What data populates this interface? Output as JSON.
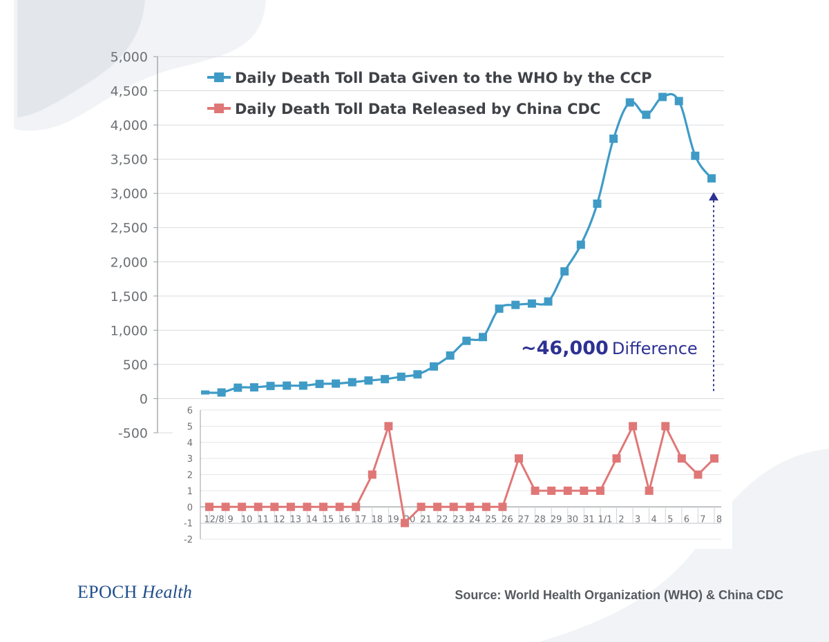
{
  "chart_data": [
    {
      "type": "line",
      "series": [
        {
          "name": "Daily Death Toll Data Given to the WHO by the CCP",
          "color": "#3f9bc6",
          "values": [
            90,
            90,
            160,
            165,
            185,
            190,
            190,
            215,
            220,
            240,
            265,
            285,
            320,
            355,
            470,
            630,
            845,
            900,
            1315,
            1370,
            1390,
            1420,
            1860,
            2250,
            2850,
            3800,
            4330,
            4150,
            4410,
            4350,
            3550,
            3220
          ]
        }
      ],
      "ylim": [
        -500,
        5000
      ],
      "yticks": [
        "5,000",
        "4,500",
        "4,000",
        "3,500",
        "3,000",
        "2,500",
        "2,000",
        "1,500",
        "1,000",
        "500",
        "0",
        "-500"
      ],
      "grid": true,
      "legend": "top-left"
    },
    {
      "type": "line",
      "categories": [
        "12/8",
        "9",
        "10",
        "11",
        "12",
        "13",
        "14",
        "15",
        "16",
        "17",
        "18",
        "19",
        "20",
        "21",
        "22",
        "23",
        "24",
        "25",
        "26",
        "27",
        "28",
        "29",
        "30",
        "31",
        "1/1",
        "2",
        "3",
        "4",
        "5",
        "6",
        "7",
        "8"
      ],
      "series": [
        {
          "name": "Daily Death Toll Data Released by China CDC",
          "color": "#e07777",
          "values": [
            0,
            0,
            0,
            0,
            0,
            0,
            0,
            0,
            0,
            0,
            2,
            5,
            -1,
            0,
            0,
            0,
            0,
            0,
            0,
            3,
            1,
            1,
            1,
            1,
            1,
            3,
            5,
            1,
            5,
            3,
            2,
            3
          ]
        }
      ],
      "ylim": [
        -2,
        6
      ],
      "yticks": [
        "6",
        "5",
        "4",
        "3",
        "2",
        "1",
        "0",
        "-1",
        "-2"
      ],
      "grid": true
    }
  ],
  "annotation": {
    "number": "~46,000",
    "word": "Difference",
    "color": "#2e3192"
  },
  "footer": {
    "brand_main": "EPOCH",
    "brand_italic": "Health",
    "source": "Source: World Health Organization (WHO) & China CDC"
  }
}
